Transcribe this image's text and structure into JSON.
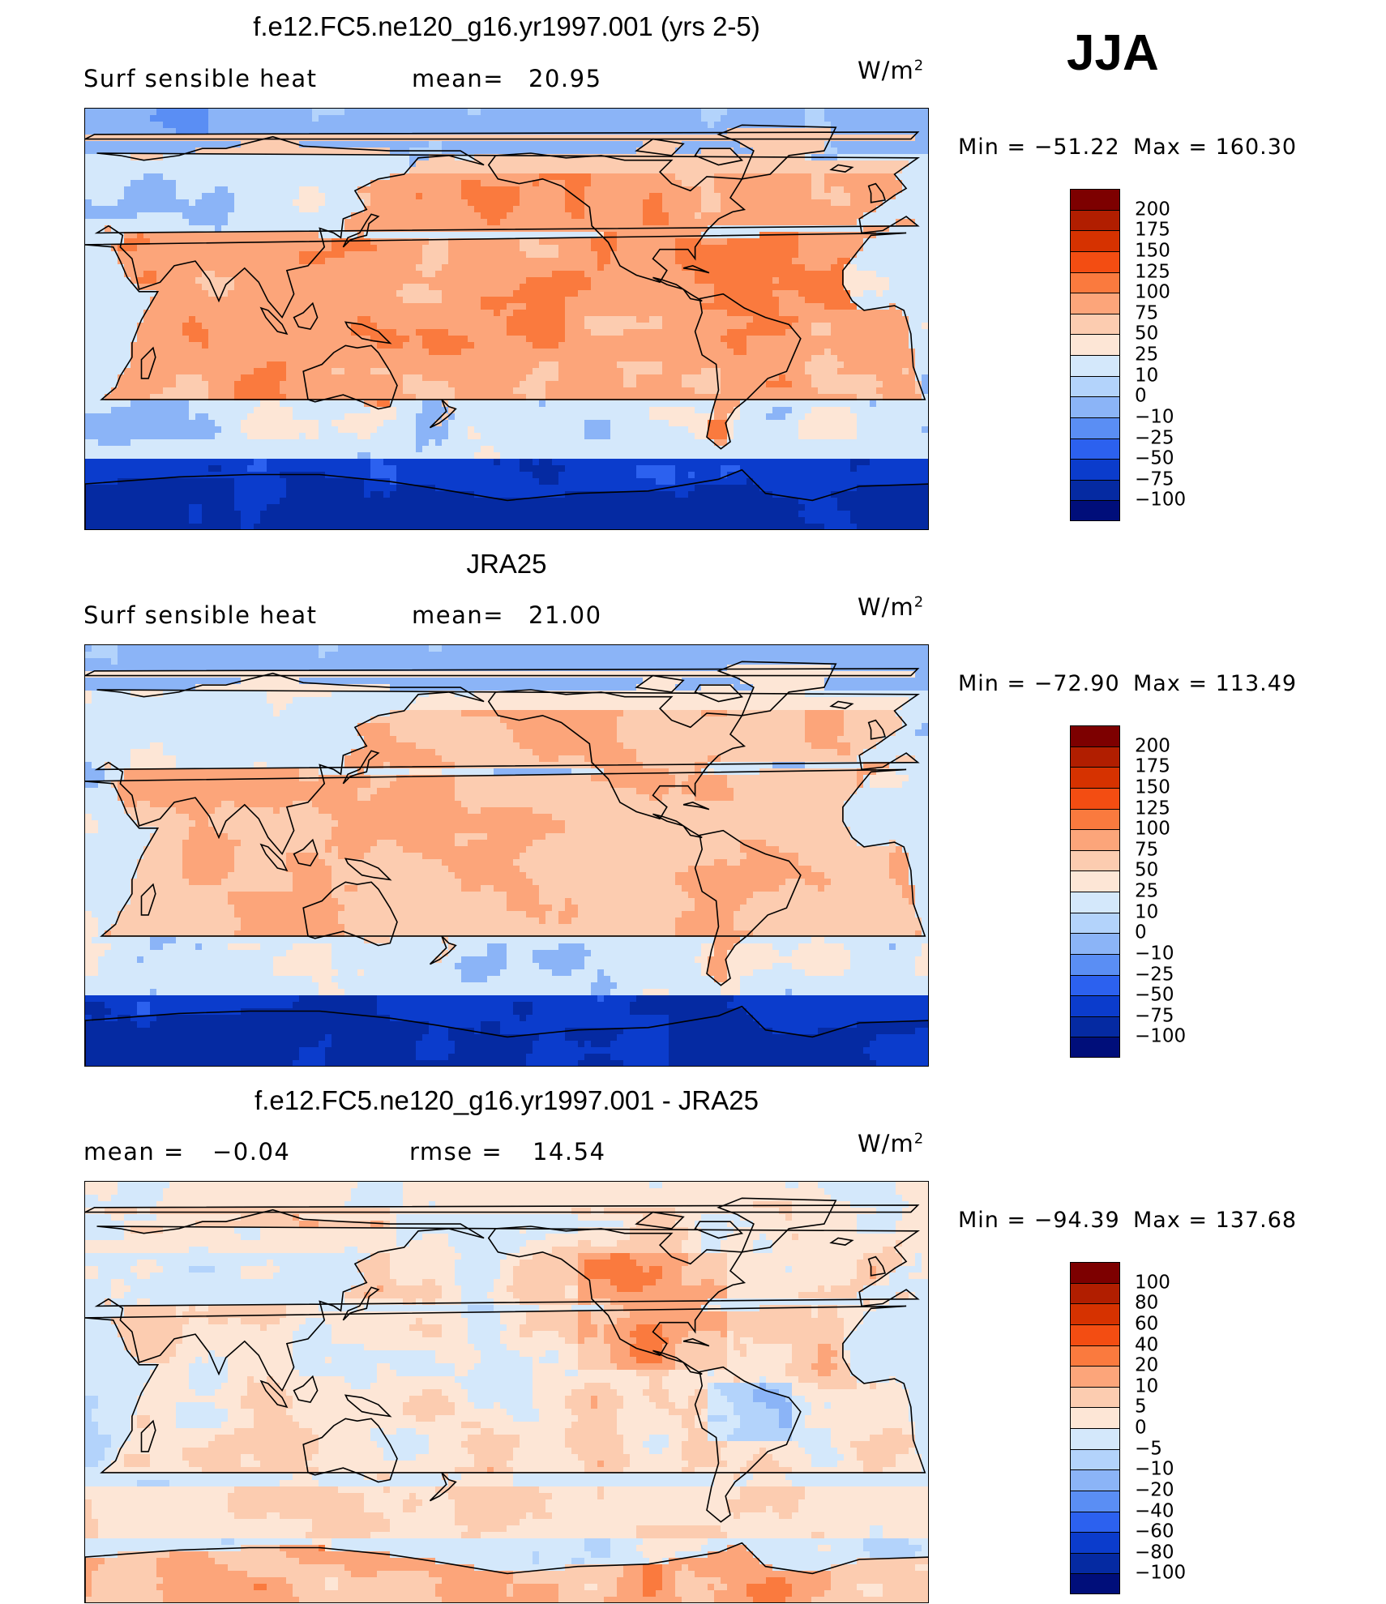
{
  "season": "JJA",
  "panels": [
    {
      "title": "f.e12.FC5.ne120_g16.yr1997.001 (yrs 2-5)",
      "left_label": "Surf  sensible  heat",
      "stat1_label": "mean=",
      "stat1_value": "20.95",
      "stat2_label": "",
      "stat2_value": "",
      "units": "W/m",
      "units_exp": "2",
      "min_label": "Min  =  −51.22",
      "max_label": "Max  =  160.30",
      "variant": "model",
      "colorbar": {
        "labels": [
          "200",
          "175",
          "150",
          "125",
          "100",
          "75",
          "50",
          "25",
          "10",
          "0",
          "−10",
          "−25",
          "−50",
          "−75",
          "−100"
        ],
        "colors": [
          "#7d0000",
          "#b11e00",
          "#d63200",
          "#f34d12",
          "#fa7a3e",
          "#fca57a",
          "#fcccb0",
          "#fde6d6",
          "#d4e8fb",
          "#b3d3fb",
          "#8bb4f7",
          "#5a8ef4",
          "#2c61ef",
          "#0b3ccc",
          "#052aa2",
          "#000e7a"
        ]
      }
    },
    {
      "title": "JRA25",
      "left_label": "Surf  sensible  heat",
      "stat1_label": "mean=",
      "stat1_value": "21.00",
      "stat2_label": "",
      "stat2_value": "",
      "units": "W/m",
      "units_exp": "2",
      "min_label": "Min  =  −72.90",
      "max_label": "Max  =  113.49",
      "variant": "obs",
      "colorbar": {
        "labels": [
          "200",
          "175",
          "150",
          "125",
          "100",
          "75",
          "50",
          "25",
          "10",
          "0",
          "−10",
          "−25",
          "−50",
          "−75",
          "−100"
        ],
        "colors": [
          "#7d0000",
          "#b11e00",
          "#d63200",
          "#f34d12",
          "#fa7a3e",
          "#fca57a",
          "#fcccb0",
          "#fde6d6",
          "#d4e8fb",
          "#b3d3fb",
          "#8bb4f7",
          "#5a8ef4",
          "#2c61ef",
          "#0b3ccc",
          "#052aa2",
          "#000e7a"
        ]
      }
    },
    {
      "title": "f.e12.FC5.ne120_g16.yr1997.001 - JRA25",
      "left_label": "mean  =",
      "stat1_label": "",
      "stat1_value": "−0.04",
      "stat2_label": "rmse  =",
      "stat2_value": "14.54",
      "units": "W/m",
      "units_exp": "2",
      "min_label": "Min  =  −94.39",
      "max_label": "Max  =  137.68",
      "variant": "diff",
      "colorbar": {
        "labels": [
          "100",
          "80",
          "60",
          "40",
          "20",
          "10",
          "5",
          "0",
          "−5",
          "−10",
          "−20",
          "−40",
          "−60",
          "−80",
          "−100"
        ],
        "colors": [
          "#7d0000",
          "#b11e00",
          "#d63200",
          "#f34d12",
          "#fa7a3e",
          "#fca57a",
          "#fcccb0",
          "#fde6d6",
          "#d4e8fb",
          "#b3d3fb",
          "#8bb4f7",
          "#5a8ef4",
          "#2c61ef",
          "#0b3ccc",
          "#052aa2",
          "#000e7a"
        ]
      }
    }
  ]
}
